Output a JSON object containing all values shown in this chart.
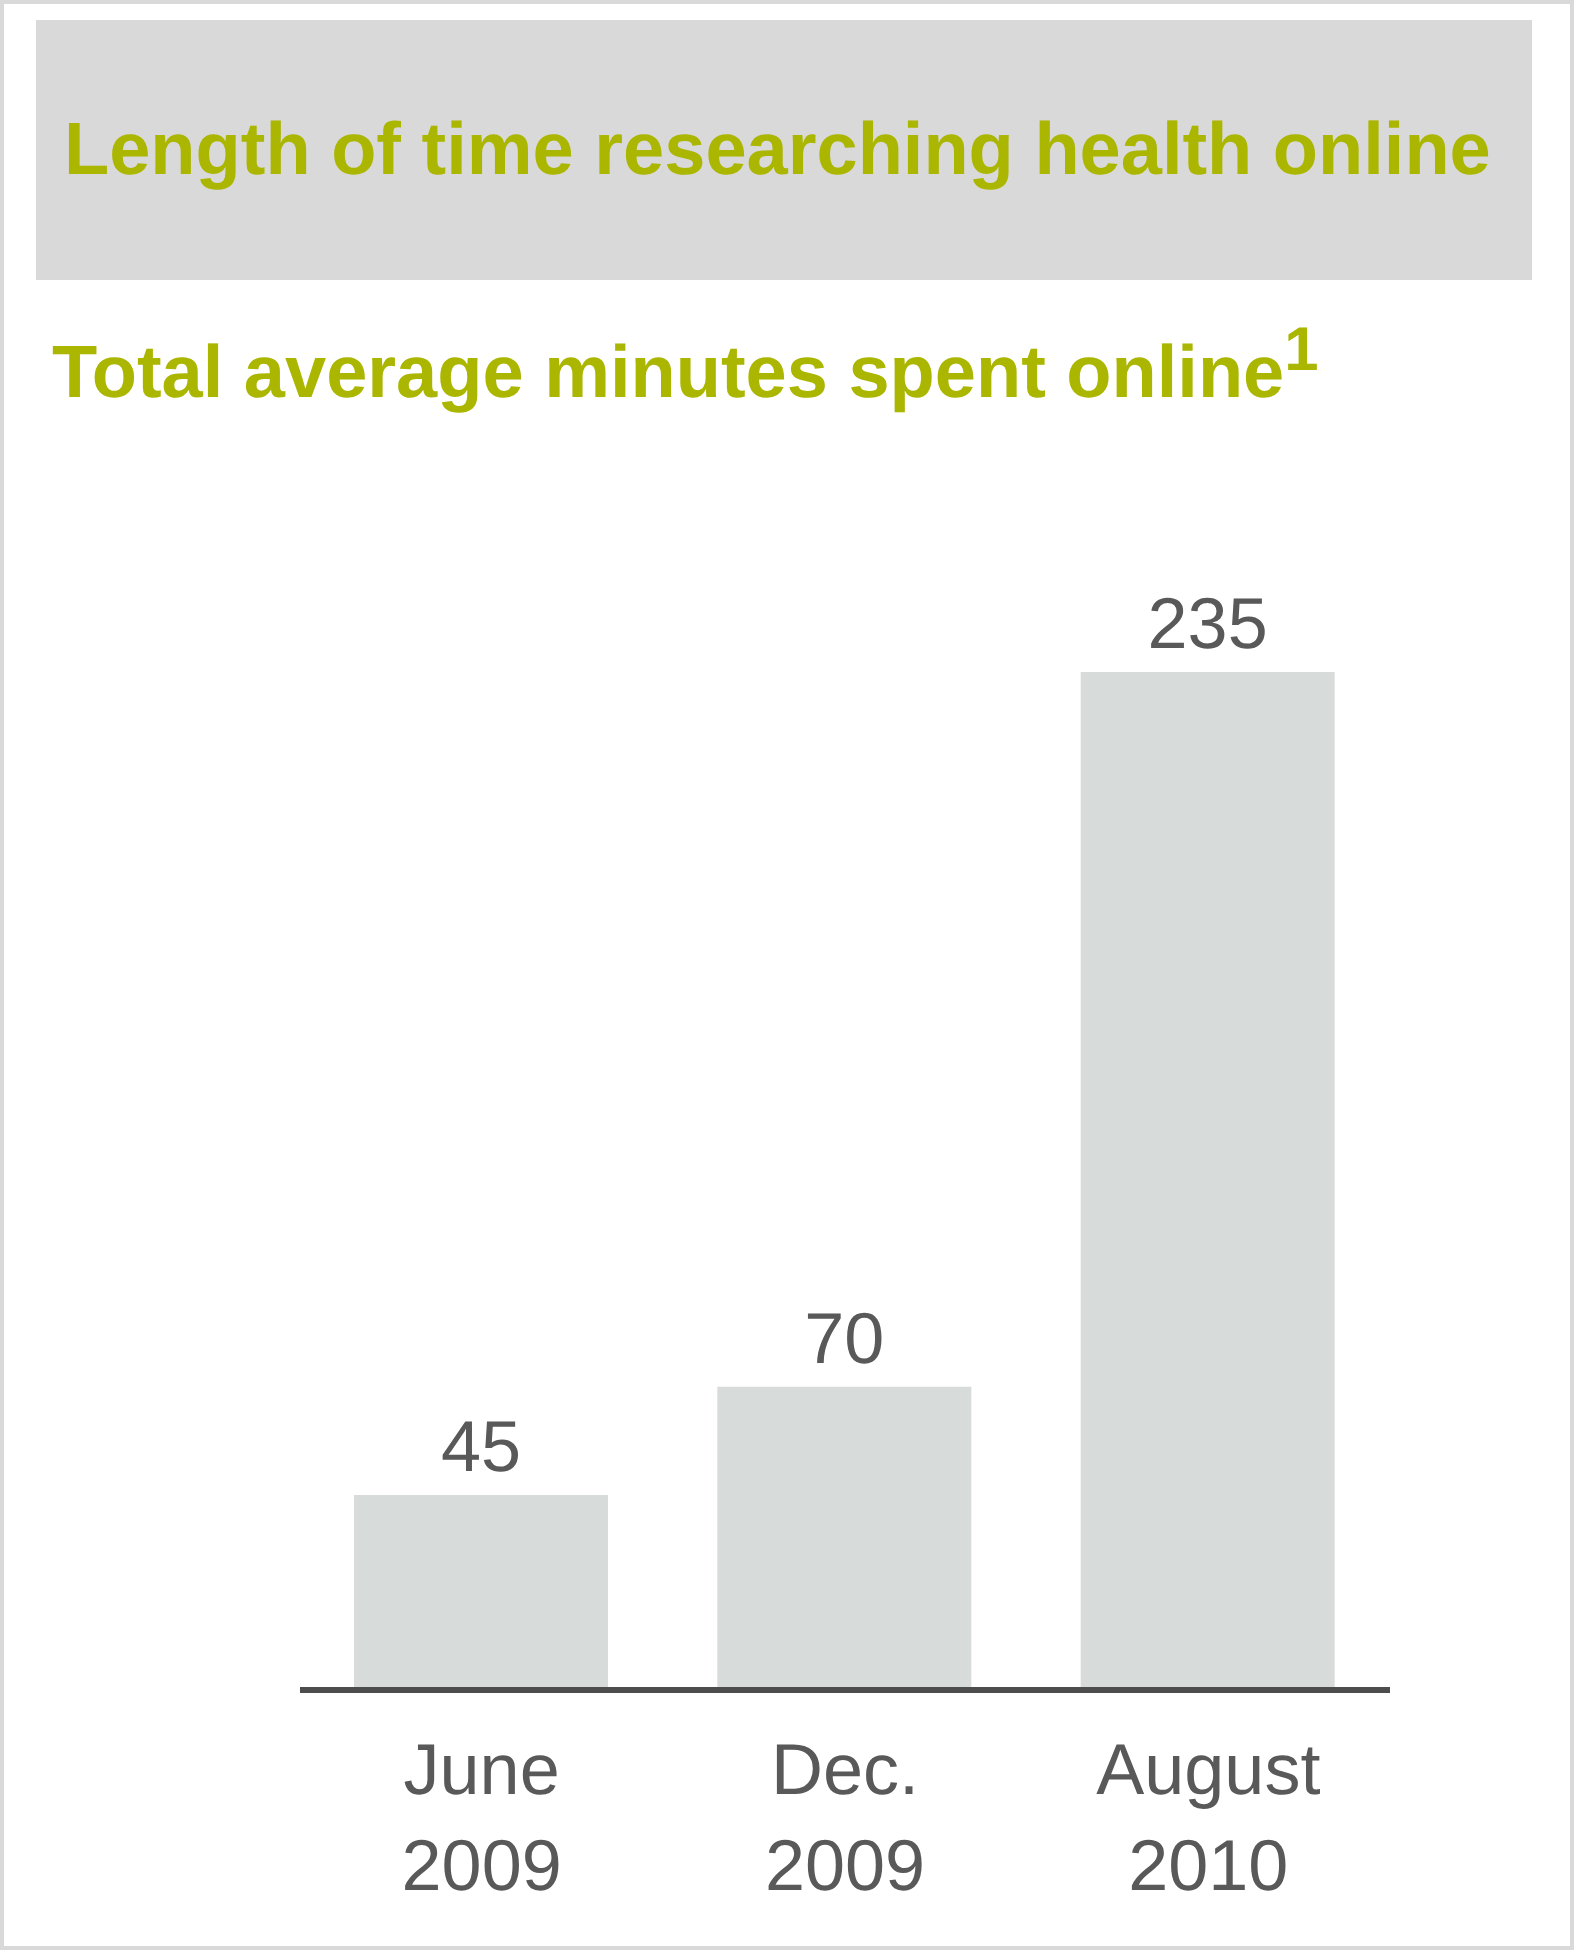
{
  "chart_data": {
    "type": "bar",
    "title": "Length of time researching health online",
    "subtitle": "Total average minutes spent online$^{1}$",
    "categories": [
      "June 2009",
      "Dec. 2009",
      "August 2010"
    ],
    "values": [
      45,
      70,
      235
    ],
    "color": "#d7dbda",
    "data_labels": true,
    "grid": false,
    "legend": false
  }
}
